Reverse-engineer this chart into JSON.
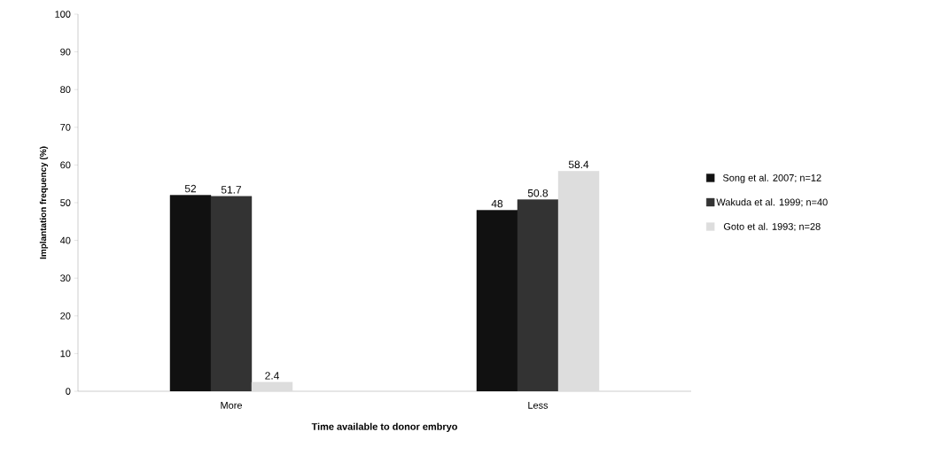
{
  "chart_data": {
    "type": "bar",
    "xlabel": "Time available to donor embryo",
    "ylabel": "Implantation frequency (%)",
    "categories": [
      "More",
      "Less"
    ],
    "series": [
      {
        "name": "Song et al. 2007; n=12",
        "color": "#111111",
        "values": [
          52,
          48
        ]
      },
      {
        "name": "Wakuda et al. 1999; n=40",
        "color": "#333333",
        "values": [
          51.7,
          50.8
        ]
      },
      {
        "name": "Goto et al. 1993; n=28",
        "color": "#dddddd",
        "values": [
          2.4,
          58.4
        ]
      }
    ],
    "ylim": [
      0,
      100
    ],
    "yticks": [
      0,
      10,
      20,
      30,
      40,
      50,
      60,
      70,
      80,
      90,
      100
    ],
    "grid": false,
    "legend": "right",
    "data_labels": true
  }
}
